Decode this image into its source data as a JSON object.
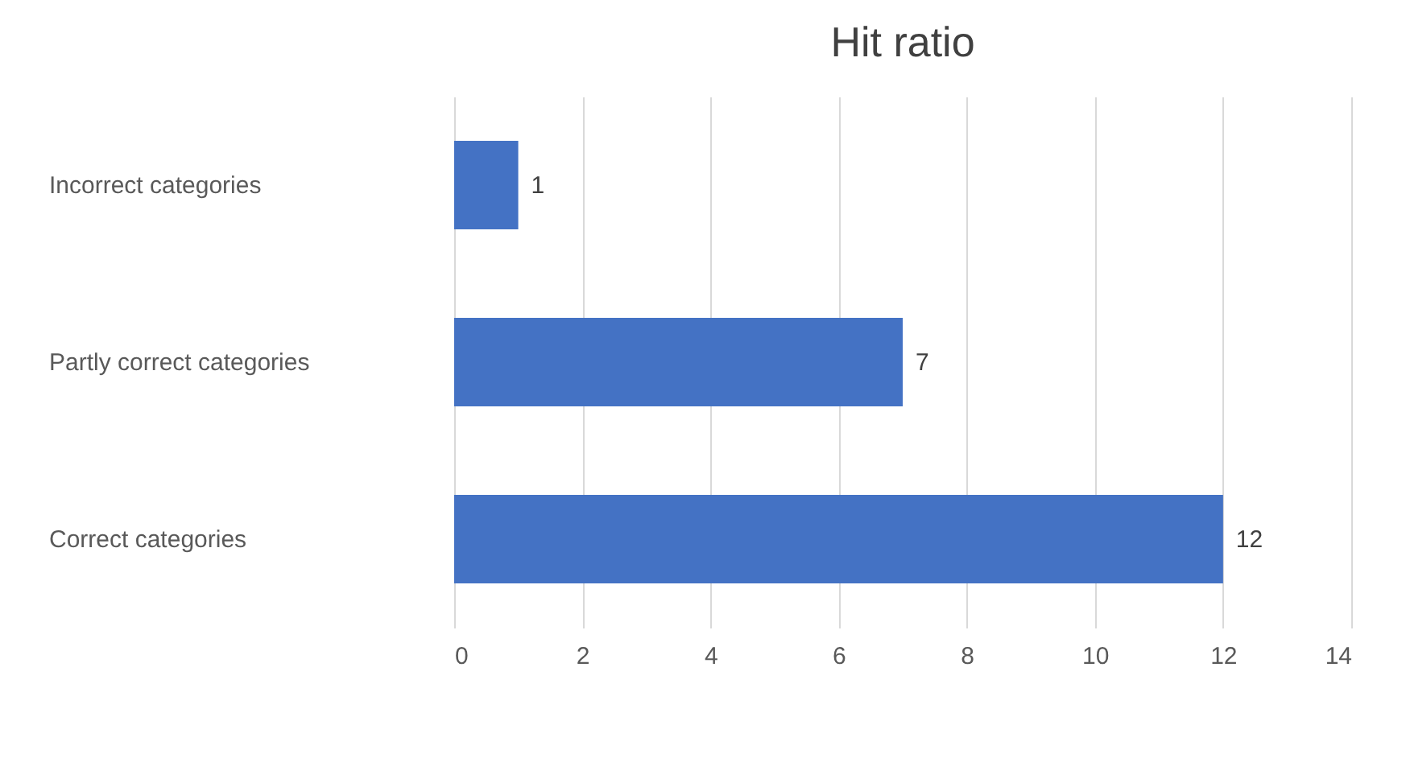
{
  "chart_data": {
    "type": "bar",
    "title": "Hit ratio",
    "orientation": "horizontal",
    "categories": [
      "Incorrect categories",
      "Partly correct categories",
      "Correct categories"
    ],
    "values": [
      1,
      7,
      12
    ],
    "color": "#4472c4",
    "xlim": [
      0,
      14
    ],
    "xticks": [
      0,
      2,
      4,
      6,
      8,
      10,
      12,
      14
    ],
    "grid": "x",
    "data_labels": true
  }
}
